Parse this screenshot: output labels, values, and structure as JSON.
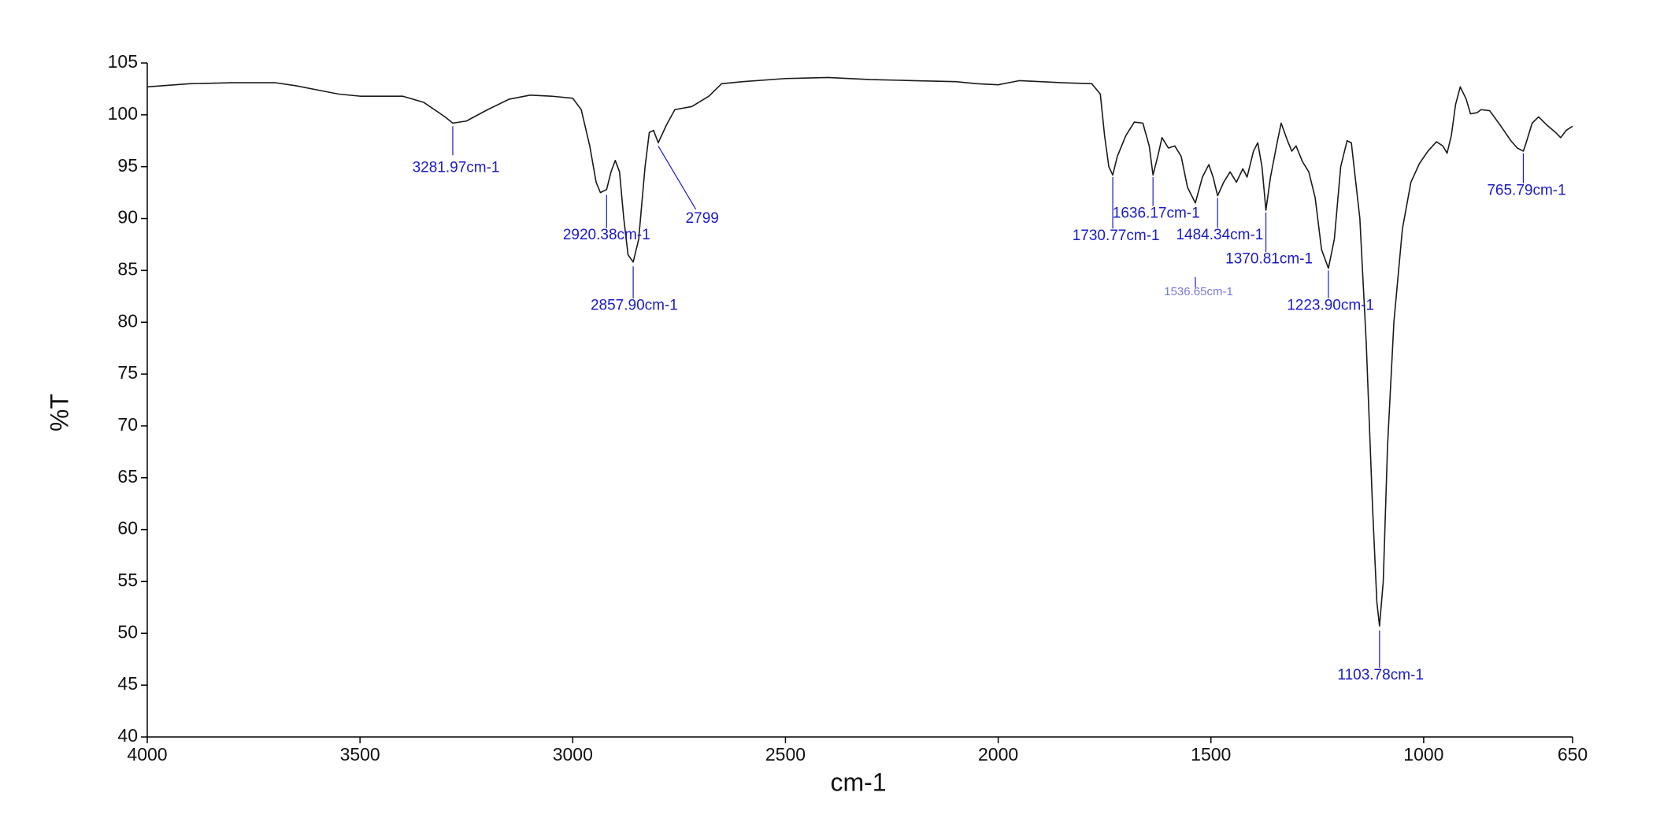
{
  "chart_data": {
    "type": "line",
    "x_label": "cm-1",
    "y_label": "%T",
    "x": [
      4000,
      3900,
      3800,
      3700,
      3650,
      3600,
      3550,
      3500,
      3450,
      3400,
      3350,
      3300,
      3281.97,
      3250,
      3200,
      3150,
      3100,
      3050,
      3000,
      2980,
      2960,
      2945,
      2935,
      2920.38,
      2910,
      2900,
      2890,
      2880,
      2870,
      2857.9,
      2845,
      2830,
      2820,
      2810,
      2799,
      2780,
      2760,
      2720,
      2680,
      2650,
      2600,
      2500,
      2400,
      2300,
      2200,
      2100,
      2050,
      2000,
      1950,
      1900,
      1850,
      1780,
      1760,
      1750,
      1740,
      1730.77,
      1720,
      1700,
      1680,
      1660,
      1645,
      1636.17,
      1625,
      1615,
      1600,
      1585,
      1570,
      1555,
      1536.65,
      1520,
      1505,
      1495,
      1484.34,
      1470,
      1455,
      1440,
      1425,
      1415,
      1400,
      1390,
      1380,
      1370.81,
      1360,
      1345,
      1335,
      1320,
      1310,
      1300,
      1285,
      1270,
      1255,
      1240,
      1223.9,
      1210,
      1195,
      1180,
      1170,
      1150,
      1135,
      1120,
      1110,
      1103.78,
      1095,
      1085,
      1070,
      1050,
      1030,
      1010,
      990,
      970,
      955,
      945,
      935,
      925,
      914,
      900,
      890,
      875,
      865,
      845,
      820,
      795,
      780,
      765.79,
      760,
      745,
      730,
      710,
      690,
      678,
      665,
      650
    ],
    "series": [
      {
        "color": "#1a1a1a",
        "values": [
          102.7,
          103.0,
          103.1,
          103.1,
          102.8,
          102.4,
          102.0,
          101.8,
          101.8,
          101.8,
          101.2,
          99.8,
          99.2,
          99.4,
          100.5,
          101.5,
          101.9,
          101.8,
          101.6,
          100.5,
          97,
          93.5,
          92.5,
          92.8,
          94.5,
          95.6,
          94.5,
          90,
          86.5,
          85.8,
          88,
          95,
          98.3,
          98.5,
          97.3,
          99,
          100.5,
          100.8,
          101.8,
          103.0,
          103.2,
          103.5,
          103.6,
          103.4,
          103.3,
          103.2,
          103.0,
          102.9,
          103.3,
          103.2,
          103.1,
          103.0,
          102,
          98,
          95,
          94.2,
          96,
          98,
          99.3,
          99.2,
          97,
          94.2,
          96,
          97.8,
          96.8,
          97,
          96,
          93,
          91.5,
          94,
          95.2,
          94,
          92.2,
          93.5,
          94.5,
          93.5,
          94.8,
          94,
          96.5,
          97.3,
          95,
          90.8,
          94,
          97.2,
          99.2,
          97.5,
          96.5,
          97,
          95.5,
          94.5,
          92,
          87,
          85.2,
          88,
          95,
          97.5,
          97.3,
          90,
          78,
          62,
          53,
          50.7,
          55,
          68,
          80,
          89,
          93.5,
          95.3,
          96.5,
          97.4,
          97,
          96.3,
          98,
          101,
          102.7,
          101.5,
          100.1,
          100.2,
          100.5,
          100.4,
          99,
          97.5,
          96.8,
          96.5,
          97.2,
          99.2,
          99.8,
          99,
          98.3,
          97.8,
          98.5,
          98.9
        ]
      }
    ],
    "annotations": [
      {
        "x": 3281.97,
        "y": 99.2,
        "label": "3281.97cm-1"
      },
      {
        "x": 2920.38,
        "y": 92.8,
        "label": "2920.38cm-1"
      },
      {
        "x": 2857.9,
        "y": 85.8,
        "label": "2857.90cm-1"
      },
      {
        "x": 2799,
        "y": 97.3,
        "label": "2799"
      },
      {
        "x": 1730.77,
        "y": 94.2,
        "label": "1730.77cm-1"
      },
      {
        "x": 1636.17,
        "y": 94.2,
        "label": "1636.17cm-1"
      },
      {
        "x": 1536.65,
        "y": 91.5,
        "label": "1536.65cm-1"
      },
      {
        "x": 1484.34,
        "y": 92.2,
        "label": "1484.34cm-1"
      },
      {
        "x": 1370.81,
        "y": 90.8,
        "label": "1370.81cm-1"
      },
      {
        "x": 1223.9,
        "y": 85.2,
        "label": "1223.90cm-1"
      },
      {
        "x": 1103.78,
        "y": 50.7,
        "label": "1103.78cm-1"
      },
      {
        "x": 765.79,
        "y": 96.5,
        "label": "765.79cm-1"
      }
    ],
    "annotation_color": "#1a1acc",
    "xlim": [
      4000,
      650
    ],
    "xticks": [
      4000,
      3500,
      3000,
      2500,
      2000,
      1500,
      1000,
      650
    ],
    "ylim": [
      40,
      105
    ],
    "yticks": [
      40,
      45,
      50,
      55,
      60,
      65,
      70,
      75,
      80,
      85,
      90,
      95,
      100,
      105
    ],
    "grid": false
  }
}
